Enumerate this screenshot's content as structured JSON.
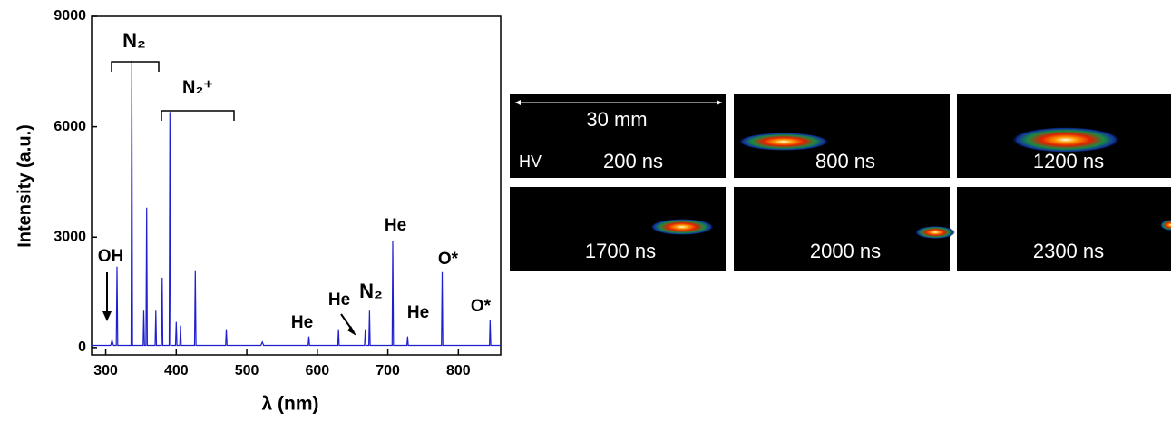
{
  "chart_data": {
    "type": "line",
    "x_label": "λ (nm)",
    "y_label": "Intensity (a.u.)",
    "xlim": [
      280,
      860
    ],
    "xticks": [
      300,
      400,
      500,
      600,
      700,
      800
    ],
    "ylim": [
      -200,
      9000
    ],
    "yticks": [
      0,
      3000,
      6000,
      9000
    ],
    "annotations": [
      "N₂",
      "N₂⁺",
      "OH",
      "He",
      "He",
      "N₂",
      "He",
      "He",
      "O*",
      "O*"
    ],
    "series": [
      {
        "color": "#1f1fd0",
        "x": [
          280,
          307,
          309,
          311,
          315,
          316,
          317,
          336,
          337,
          338,
          353,
          354,
          355,
          357,
          358,
          359,
          370,
          371,
          372,
          379,
          380,
          381,
          390,
          391,
          392,
          399,
          400,
          401,
          405,
          406,
          407,
          426,
          427,
          428,
          470,
          471,
          472,
          520,
          522,
          524,
          587,
          588,
          589,
          629,
          630,
          631,
          667,
          668,
          669,
          673,
          674,
          675,
          706,
          707,
          708,
          727,
          728,
          729,
          776,
          777,
          778,
          844,
          845,
          846,
          860
        ],
        "values": [
          60,
          60,
          200,
          60,
          60,
          2200,
          60,
          60,
          7800,
          60,
          60,
          1000,
          60,
          60,
          3800,
          60,
          60,
          1000,
          60,
          60,
          1900,
          60,
          60,
          6400,
          60,
          60,
          700,
          60,
          60,
          600,
          60,
          60,
          2100,
          60,
          60,
          500,
          60,
          60,
          150,
          60,
          60,
          300,
          60,
          60,
          500,
          60,
          60,
          500,
          60,
          60,
          1000,
          60,
          60,
          2900,
          60,
          60,
          300,
          60,
          60,
          2050,
          60,
          60,
          750,
          60,
          60
        ]
      }
    ]
  },
  "panels": {
    "scale": "30 mm",
    "electrode": "HV",
    "times": [
      "200 ns",
      "800 ns",
      "1200 ns",
      "1700 ns",
      "2000 ns",
      "2300 ns"
    ]
  }
}
